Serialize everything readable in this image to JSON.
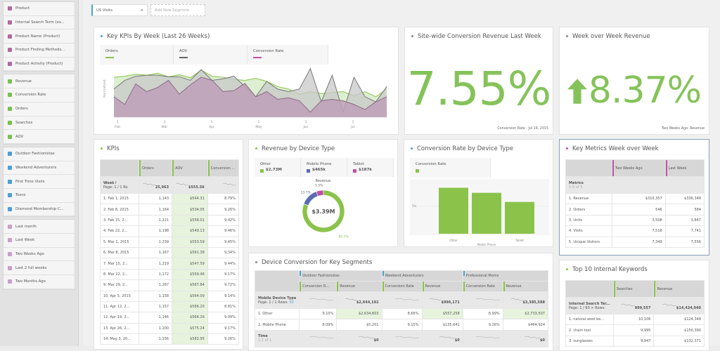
{
  "sidebar": {
    "groups": [
      {
        "color": "#b06aa0",
        "items": [
          "Product",
          "Internal Search Term (ev...",
          "Product Name (Product)",
          "Product Finding Methods...",
          "Product Activity (Product)"
        ]
      },
      {
        "color": "#7bbf4d",
        "items": [
          "Revenue",
          "Conversion Rate",
          "Orders",
          "Searches",
          "AOV"
        ]
      },
      {
        "color": "#4ea0d0",
        "items": [
          "Outdoor Fashionistas",
          "Weekend Adventurers",
          "First Time Visits",
          "Tesco",
          "Diamond Membership C..."
        ]
      },
      {
        "color": "#c8a0c8",
        "items": [
          "Last month",
          "Last Week",
          "Two Weeks Ago",
          "Last 2 full weeks",
          "Two Months Ago"
        ]
      }
    ]
  },
  "segments": {
    "active": "US Visits",
    "close": "×",
    "add": "Add New Segment"
  },
  "kpi_chart": {
    "title": "Key KPIs By Week (Last 26 Weeks)",
    "ylabel": "Normalized",
    "legend": [
      {
        "name": "Orders",
        "color": "#8bc34a"
      },
      {
        "name": "AOV",
        "color": "#666666"
      },
      {
        "name": "Conversion Rate",
        "color": "#c04fa4"
      }
    ],
    "xticks": [
      {
        "d": "1",
        "m": "Feb"
      },
      {
        "d": "1",
        "m": "Mar"
      },
      {
        "d": "1",
        "m": "Apr"
      },
      {
        "d": "1",
        "m": "May"
      },
      {
        "d": "1",
        "m": "Jun"
      },
      {
        "d": "1",
        "m": "Jul"
      }
    ],
    "series": {
      "orders": [
        0.78,
        0.8,
        0.84,
        0.82,
        0.86,
        0.79,
        0.83,
        0.77,
        0.92,
        0.8,
        0.78,
        0.74,
        0.72,
        0.76,
        0.7,
        0.6,
        0.55,
        0.45,
        0.5,
        0.46,
        0.48,
        0.5,
        0.42,
        0.5,
        0.4,
        0.55
      ],
      "aov": [
        0.55,
        0.72,
        0.8,
        0.82,
        0.82,
        0.79,
        0.79,
        0.72,
        0.93,
        0.72,
        0.75,
        0.8,
        0.6,
        0.4,
        0.7,
        0.55,
        0.5,
        0.55,
        0.95,
        0.3,
        0.82,
        0.1,
        0.78,
        0.4,
        0.3,
        0.6
      ],
      "conv": [
        0.4,
        0.25,
        0.65,
        0.5,
        0.58,
        0.72,
        0.45,
        0.63,
        0.78,
        0.72,
        0.5,
        0.52,
        0.66,
        0.4,
        0.5,
        0.35,
        0.38,
        0.32,
        0.1,
        0.32,
        0.35,
        0.32,
        0.25,
        0.15,
        0.3,
        0.4
      ]
    }
  },
  "sitewide": {
    "title": "Site-wide Conversion Revenue Last Week",
    "value": "7.55%",
    "foot": "Conversion Rate · Jul 19, 2015"
  },
  "wow": {
    "title": "Week over Week Revenue",
    "value": "8.37%",
    "arrow": "up-arrow-icon",
    "foot": "Two Weeks Ago: Revenue"
  },
  "kpis": {
    "title": "KPIs",
    "headers": [
      "Orders",
      "AOV",
      "Conversion ..."
    ],
    "dim": "Week",
    "page": "Page:  1 / 1",
    "rows_label": "Ro",
    "spark": "Feb 1",
    "totals": [
      "25,963",
      "$555.56",
      ""
    ],
    "rows": [
      [
        "1.",
        "Feb 1, 2015",
        "1,143",
        "$544.31",
        "8.79%"
      ],
      [
        "2.",
        "Feb 8, 2015",
        "1,164",
        "$534.05",
        "9.26%"
      ],
      [
        "3.",
        "Feb 15, 2...",
        "1,221",
        "$558.01",
        "9.42%"
      ],
      [
        "4.",
        "Feb 22, 2...",
        "1,198",
        "$549.13",
        "9.46%"
      ],
      [
        "5.",
        "Mar 1, 2015",
        "1,239",
        "$553.59",
        "9.45%"
      ],
      [
        "6.",
        "Mar 8, 2015",
        "1,167",
        "$561.38",
        "9.34%"
      ],
      [
        "7.",
        "Mar 15, 2...",
        "1,219",
        "$547.59",
        "9.44%"
      ],
      [
        "8.",
        "Mar 22, 2...",
        "1,172",
        "$559.46",
        "9.17%"
      ],
      [
        "9.",
        "Mar 29, 2...",
        "1,267",
        "$567.84",
        "9.72%"
      ],
      [
        "10.",
        "Apr 5, 2015",
        "1,158",
        "$564.09",
        "9.14%"
      ],
      [
        "11.",
        "Apr 12, 2...",
        "1,157",
        "$566.20",
        "8.81%"
      ],
      [
        "12.",
        "Apr 19, 2...",
        "1,146",
        "$564.26",
        "9.09%"
      ],
      [
        "13.",
        "Apr 26, 2...",
        "1,200",
        "$575.24",
        "9.17%"
      ],
      [
        "14.",
        "May 3, 20...",
        "1,156",
        "$582.95",
        "9.26%"
      ]
    ]
  },
  "rev_device": {
    "title": "Revenue by Device Type",
    "label": "Revenue",
    "total": "$3.39M",
    "items": [
      {
        "name": "Other",
        "value": "$2.73M",
        "pct": 80.7,
        "pct_label": "80.7%",
        "color": "#8bc34a"
      },
      {
        "name": "Mobile Phone",
        "value": "$465k",
        "pct": 13.7,
        "pct_label": "13.7%",
        "color": "#5b6bb0"
      },
      {
        "name": "Tablet",
        "value": "$187k",
        "pct": 5.5,
        "pct_label": "5.5%",
        "color": "#c04fa4"
      }
    ]
  },
  "conv_device": {
    "title": "Conversion Rate by Device Type",
    "legend": "Conversion Rate",
    "ytick": "5%",
    "xlabel": "Mobile Phone",
    "bars": [
      {
        "name": "Other",
        "value": 9.1
      },
      {
        "name": "Mobile Phone",
        "value": 8.1
      },
      {
        "name": "Tablet",
        "value": 6.3
      }
    ],
    "xticks": [
      "Other",
      "Tablet"
    ]
  },
  "key_metrics": {
    "title": "Key Metrics Week over Week",
    "headers": [
      "Two Weeks Ago",
      "Last Week"
    ],
    "dim": "Metrics",
    "count": "1-5 of 5",
    "rows": [
      [
        "1.",
        "Revenue",
        "$310,357",
        "$336,348"
      ],
      [
        "2.",
        "Orders",
        "546",
        "584"
      ],
      [
        "3.",
        "Units",
        "3,508",
        "3,847"
      ],
      [
        "4.",
        "Visits",
        "7,518",
        "7,741"
      ],
      [
        "5.",
        "Unique Visitors",
        "7,349",
        "7,556"
      ]
    ]
  },
  "device_conv": {
    "title": "Device Conversion for Key Segments",
    "segments": [
      "Outdoor Fashionistas",
      "Weekend Adventurers",
      "Professional Moms"
    ],
    "metrics": [
      "Conversion R...",
      "Revenue",
      "Conversion Rate",
      "Revenue",
      "Conversion Rate",
      "Revenue"
    ],
    "dim": "Mobile Device Type",
    "page": "Page:  1 / 1",
    "rows_label": "Rows:",
    "rows_value": "50",
    "totals": [
      "",
      "$2,644,192",
      "",
      "$996,171",
      "",
      "$3,385,588"
    ],
    "rows": [
      [
        "1.",
        "Other",
        "9.10%",
        "$2,634,603",
        "8.66%",
        "$557,258",
        "8.99%",
        "$2,733,507"
      ],
      [
        "2.",
        "Mobile Phone",
        "8.09%",
        "$5,201",
        "9.15%",
        "$135,641",
        "9.26%",
        "$464,924"
      ]
    ],
    "sub": {
      "dim": "Time",
      "count": "1-1 of 1",
      "side": "Mobile Phone",
      "totals": [
        "",
        "$0",
        "",
        "$0",
        "",
        "$0"
      ]
    }
  },
  "top10": {
    "title": "Top 10 Internal Keywords",
    "headers": [
      "Searches",
      "Revenue"
    ],
    "dim": "Internal Search Ter...",
    "page": "Page:   1 / 60 >  Rows:",
    "totals": [
      "999,557",
      "$14,424,040"
    ],
    "rows": [
      [
        "1.",
        "natural wool be...",
        "10,106",
        "$124,348"
      ],
      [
        "2.",
        "chain tool",
        "9,995",
        "$150,390"
      ],
      [
        "3.",
        "sunglasses",
        "9,947",
        "$132,371"
      ]
    ]
  }
}
